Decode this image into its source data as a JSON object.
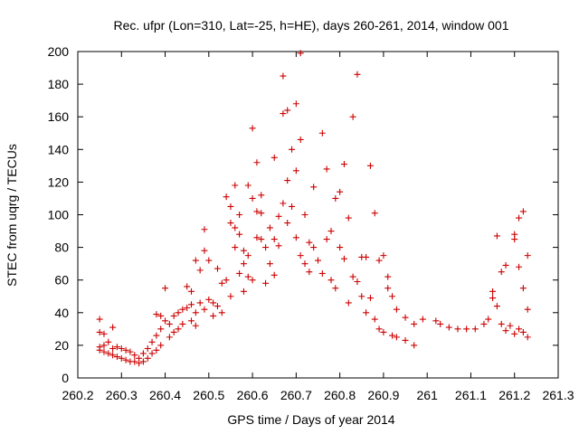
{
  "chart_data": {
    "type": "scatter",
    "title": "Rec. ufpr (Lon=310, Lat=-25, h=HE), days 260-261, 2014, window 001",
    "xlabel": "GPS time / Days of year 2014",
    "ylabel": "STEC from uqrg / TECUs",
    "xlim": [
      260.2,
      261.3
    ],
    "ylim": [
      0,
      200
    ],
    "x_ticks": [
      260.2,
      260.3,
      260.4,
      260.5,
      260.6,
      260.7,
      260.8,
      260.9,
      261,
      261.1,
      261.2,
      261.3
    ],
    "x_tick_labels": [
      "260.2",
      "260.3",
      "260.4",
      "260.5",
      "260.6",
      "260.7",
      "260.8",
      "260.9",
      "261",
      "261.1",
      "261.2",
      "261.3"
    ],
    "y_ticks": [
      0,
      20,
      40,
      60,
      80,
      100,
      120,
      140,
      160,
      180,
      200
    ],
    "y_tick_labels": [
      "0",
      "20",
      "40",
      "60",
      "80",
      "100",
      "120",
      "140",
      "160",
      "180",
      "200"
    ],
    "grid": false,
    "marker": "+",
    "marker_color": "#cc0000",
    "series": [
      {
        "points": [
          [
            260.25,
            36
          ],
          [
            260.25,
            28
          ],
          [
            260.25,
            19
          ],
          [
            260.25,
            17
          ],
          [
            260.26,
            27
          ],
          [
            260.26,
            20
          ],
          [
            260.26,
            16
          ],
          [
            260.27,
            22
          ],
          [
            260.27,
            15
          ],
          [
            260.28,
            31
          ],
          [
            260.28,
            18
          ],
          [
            260.28,
            14
          ],
          [
            260.29,
            19
          ],
          [
            260.29,
            13
          ],
          [
            260.3,
            18
          ],
          [
            260.3,
            12
          ],
          [
            260.31,
            17
          ],
          [
            260.31,
            11
          ],
          [
            260.32,
            16
          ],
          [
            260.32,
            10
          ],
          [
            260.33,
            14
          ],
          [
            260.33,
            10
          ],
          [
            260.34,
            12
          ],
          [
            260.34,
            9
          ],
          [
            260.35,
            15
          ],
          [
            260.35,
            10
          ],
          [
            260.36,
            18
          ],
          [
            260.36,
            12
          ],
          [
            260.37,
            22
          ],
          [
            260.37,
            15
          ],
          [
            260.38,
            26
          ],
          [
            260.38,
            17
          ],
          [
            260.38,
            39
          ],
          [
            260.39,
            30
          ],
          [
            260.39,
            38
          ],
          [
            260.39,
            20
          ],
          [
            260.4,
            55
          ],
          [
            260.4,
            35
          ],
          [
            260.41,
            33
          ],
          [
            260.41,
            25
          ],
          [
            260.42,
            38
          ],
          [
            260.42,
            28
          ],
          [
            260.43,
            40
          ],
          [
            260.43,
            30
          ],
          [
            260.44,
            42
          ],
          [
            260.44,
            33
          ],
          [
            260.45,
            43
          ],
          [
            260.45,
            56
          ],
          [
            260.46,
            45
          ],
          [
            260.46,
            35
          ],
          [
            260.46,
            53
          ],
          [
            260.47,
            72
          ],
          [
            260.47,
            40
          ],
          [
            260.47,
            32
          ],
          [
            260.48,
            66
          ],
          [
            260.48,
            46
          ],
          [
            260.49,
            91
          ],
          [
            260.49,
            78
          ],
          [
            260.49,
            42
          ],
          [
            260.5,
            72
          ],
          [
            260.5,
            48
          ],
          [
            260.51,
            46
          ],
          [
            260.51,
            38
          ],
          [
            260.52,
            67
          ],
          [
            260.52,
            44
          ],
          [
            260.53,
            58
          ],
          [
            260.53,
            40
          ],
          [
            260.54,
            111
          ],
          [
            260.54,
            60
          ],
          [
            260.55,
            105
          ],
          [
            260.55,
            95
          ],
          [
            260.55,
            50
          ],
          [
            260.56,
            118
          ],
          [
            260.56,
            92
          ],
          [
            260.56,
            80
          ],
          [
            260.57,
            100
          ],
          [
            260.57,
            64
          ],
          [
            260.57,
            88
          ],
          [
            260.58,
            78
          ],
          [
            260.58,
            53
          ],
          [
            260.58,
            70
          ],
          [
            260.59,
            62
          ],
          [
            260.59,
            118
          ],
          [
            260.59,
            75
          ],
          [
            260.6,
            153
          ],
          [
            260.6,
            110
          ],
          [
            260.6,
            60
          ],
          [
            260.61,
            132
          ],
          [
            260.61,
            102
          ],
          [
            260.61,
            86
          ],
          [
            260.62,
            85
          ],
          [
            260.62,
            112
          ],
          [
            260.62,
            101
          ],
          [
            260.63,
            80
          ],
          [
            260.63,
            58
          ],
          [
            260.64,
            92
          ],
          [
            260.64,
            70
          ],
          [
            260.65,
            135
          ],
          [
            260.65,
            85
          ],
          [
            260.65,
            63
          ],
          [
            260.66,
            99
          ],
          [
            260.66,
            81
          ],
          [
            260.67,
            185
          ],
          [
            260.67,
            162
          ],
          [
            260.67,
            107
          ],
          [
            260.68,
            164
          ],
          [
            260.68,
            121
          ],
          [
            260.68,
            95
          ],
          [
            260.69,
            140
          ],
          [
            260.69,
            105
          ],
          [
            260.7,
            168
          ],
          [
            260.7,
            127
          ],
          [
            260.7,
            86
          ],
          [
            260.71,
            199
          ],
          [
            260.71,
            146
          ],
          [
            260.71,
            75
          ],
          [
            260.72,
            100
          ],
          [
            260.72,
            70
          ],
          [
            260.73,
            83
          ],
          [
            260.73,
            65
          ],
          [
            260.74,
            117
          ],
          [
            260.74,
            80
          ],
          [
            260.75,
            72
          ],
          [
            260.76,
            150
          ],
          [
            260.76,
            64
          ],
          [
            260.77,
            128
          ],
          [
            260.77,
            85
          ],
          [
            260.78,
            90
          ],
          [
            260.78,
            60
          ],
          [
            260.79,
            110
          ],
          [
            260.79,
            55
          ],
          [
            260.8,
            114
          ],
          [
            260.8,
            80
          ],
          [
            260.81,
            131
          ],
          [
            260.81,
            73
          ],
          [
            260.82,
            98
          ],
          [
            260.82,
            46
          ],
          [
            260.83,
            160
          ],
          [
            260.83,
            62
          ],
          [
            260.84,
            186
          ],
          [
            260.84,
            59
          ],
          [
            260.85,
            74
          ],
          [
            260.85,
            50
          ],
          [
            260.86,
            74
          ],
          [
            260.86,
            40
          ],
          [
            260.87,
            130
          ],
          [
            260.87,
            49
          ],
          [
            260.88,
            101
          ],
          [
            260.88,
            36
          ],
          [
            260.89,
            72
          ],
          [
            260.89,
            30
          ],
          [
            260.9,
            75
          ],
          [
            260.9,
            28
          ],
          [
            260.91,
            62
          ],
          [
            260.91,
            55
          ],
          [
            260.92,
            50
          ],
          [
            260.92,
            26
          ],
          [
            260.93,
            42
          ],
          [
            260.93,
            25
          ],
          [
            260.95,
            37
          ],
          [
            260.95,
            23
          ],
          [
            260.97,
            33
          ],
          [
            260.97,
            20
          ],
          [
            260.99,
            36
          ],
          [
            261.02,
            35
          ],
          [
            261.03,
            33
          ],
          [
            261.05,
            31
          ],
          [
            261.07,
            30
          ],
          [
            261.09,
            30
          ],
          [
            261.11,
            30
          ],
          [
            261.13,
            33
          ],
          [
            261.14,
            36
          ],
          [
            261.15,
            53
          ],
          [
            261.15,
            49
          ],
          [
            261.16,
            87
          ],
          [
            261.16,
            44
          ],
          [
            261.17,
            65
          ],
          [
            261.17,
            33
          ],
          [
            261.18,
            69
          ],
          [
            261.18,
            29
          ],
          [
            261.19,
            32
          ],
          [
            261.2,
            88
          ],
          [
            261.2,
            85
          ],
          [
            261.2,
            27
          ],
          [
            261.21,
            98
          ],
          [
            261.21,
            68
          ],
          [
            261.21,
            30
          ],
          [
            261.22,
            102
          ],
          [
            261.22,
            55
          ],
          [
            261.22,
            28
          ],
          [
            261.23,
            75
          ],
          [
            261.23,
            42
          ],
          [
            261.23,
            25
          ]
        ]
      }
    ]
  }
}
